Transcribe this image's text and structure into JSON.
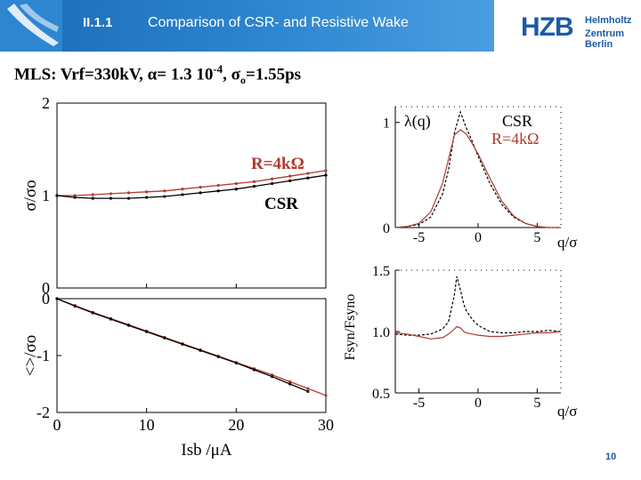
{
  "header": {
    "section": "II.1.1",
    "title": "Comparison of CSR- and Resistive  Wake",
    "logo_main": "HZB",
    "logo_sub1": "Helmholtz",
    "logo_sub2": "Zentrum Berlin",
    "brand_color": "#1c5aa5",
    "bar_color": "#2e86d0"
  },
  "subtitle": {
    "prefix": "MLS: Vrf=330kV,  α= 1.3 10",
    "exponent": "-4",
    "sep": ", σ",
    "sub": "o",
    "suffix": "=1.55ps"
  },
  "page_number": "10",
  "colors": {
    "csr": "#000000",
    "resistive": "#b03a2e"
  },
  "chart_data": [
    {
      "id": "bunch-length",
      "type": "line",
      "ylabel": "σ/σo",
      "ylim": [
        0,
        2
      ],
      "yticks": [
        "0",
        "1",
        "2"
      ],
      "xlim": [
        0,
        30
      ],
      "series": [
        {
          "name": "R=4kΩ",
          "x": [
            0,
            2,
            4,
            6,
            8,
            10,
            12,
            14,
            16,
            18,
            20,
            22,
            24,
            26,
            28,
            30
          ],
          "y": [
            1.0,
            1.0,
            1.01,
            1.02,
            1.03,
            1.04,
            1.05,
            1.07,
            1.09,
            1.11,
            1.13,
            1.15,
            1.18,
            1.21,
            1.24,
            1.27
          ]
        },
        {
          "name": "CSR",
          "x": [
            0,
            2,
            4,
            6,
            8,
            10,
            12,
            14,
            16,
            18,
            20,
            22,
            24,
            26,
            28,
            30
          ],
          "y": [
            1.0,
            0.98,
            0.97,
            0.97,
            0.97,
            0.98,
            0.99,
            1.01,
            1.03,
            1.05,
            1.07,
            1.1,
            1.13,
            1.16,
            1.19,
            1.22
          ]
        }
      ],
      "annotations": [
        "R=4kΩ",
        "CSR"
      ]
    },
    {
      "id": "centroid-shift",
      "type": "line",
      "ylabel": "<>/σo",
      "xlabel": "Isb /μA",
      "ylim": [
        -2,
        0
      ],
      "yticks": [
        "0",
        "-1",
        "-2"
      ],
      "xlim": [
        0,
        30
      ],
      "xticks": [
        "0",
        "10",
        "20",
        "30"
      ],
      "series": [
        {
          "name": "R=4kΩ",
          "x": [
            0,
            2,
            4,
            6,
            8,
            10,
            12,
            14,
            16,
            18,
            20,
            22,
            24,
            26,
            28,
            30
          ],
          "y": [
            0,
            -0.12,
            -0.24,
            -0.35,
            -0.46,
            -0.57,
            -0.68,
            -0.79,
            -0.9,
            -1.01,
            -1.12,
            -1.23,
            -1.34,
            -1.46,
            -1.58,
            -1.7
          ]
        },
        {
          "name": "CSR",
          "x": [
            0,
            2,
            4,
            6,
            8,
            10,
            12,
            14,
            16,
            18,
            20,
            22,
            24,
            26,
            28
          ],
          "y": [
            0,
            -0.13,
            -0.25,
            -0.36,
            -0.47,
            -0.58,
            -0.69,
            -0.8,
            -0.91,
            -1.02,
            -1.13,
            -1.25,
            -1.37,
            -1.5,
            -1.63
          ]
        }
      ]
    },
    {
      "id": "charge-distribution",
      "type": "line",
      "ylabel": "λ(q)",
      "xlabel": "q/σ",
      "ylim": [
        0,
        1.15
      ],
      "yticks": [
        "0",
        "1"
      ],
      "xlim": [
        -7,
        7
      ],
      "xticks": [
        "-5",
        "0",
        "5"
      ],
      "legend": [
        "CSR",
        "R=4kΩ"
      ],
      "series": [
        {
          "name": "CSR",
          "x": [
            -7,
            -6,
            -5,
            -4,
            -3,
            -2.5,
            -2,
            -1.5,
            -1,
            -0.5,
            0,
            1,
            2,
            3,
            4,
            5,
            6,
            7
          ],
          "y": [
            0,
            0.01,
            0.03,
            0.1,
            0.32,
            0.55,
            0.9,
            1.1,
            0.95,
            0.82,
            0.68,
            0.42,
            0.22,
            0.1,
            0.04,
            0.01,
            0,
            0
          ]
        },
        {
          "name": "R=4kΩ",
          "x": [
            -7,
            -6,
            -5,
            -4,
            -3,
            -2.5,
            -2,
            -1.5,
            -1,
            -0.5,
            0,
            1,
            2,
            3,
            4,
            5,
            6,
            7
          ],
          "y": [
            0,
            0.01,
            0.04,
            0.15,
            0.42,
            0.65,
            0.88,
            0.93,
            0.89,
            0.8,
            0.7,
            0.47,
            0.25,
            0.11,
            0.04,
            0.01,
            0,
            0
          ]
        }
      ]
    },
    {
      "id": "energy-spread",
      "type": "line",
      "ylabel": "Fsyn/Fsyno",
      "xlabel": "q/σ",
      "ylim": [
        0.5,
        1.5
      ],
      "yticks": [
        "0.5",
        "1.0",
        "1.5"
      ],
      "xlim": [
        -7,
        7
      ],
      "xticks": [
        "-5",
        "0",
        "5"
      ],
      "series": [
        {
          "name": "CSR",
          "x": [
            -7,
            -6,
            -5,
            -4,
            -3,
            -2.5,
            -2,
            -1.8,
            -1.5,
            -1.2,
            -1,
            -0.5,
            0,
            1,
            2,
            3,
            4,
            5,
            6,
            7
          ],
          "y": [
            0.98,
            0.97,
            0.97,
            0.98,
            1.02,
            1.08,
            1.3,
            1.45,
            1.34,
            1.22,
            1.17,
            1.1,
            1.05,
            1.0,
            0.99,
            0.99,
            1.0,
            1.0,
            1.01,
            1.0
          ]
        },
        {
          "name": "R=4kΩ",
          "x": [
            -7,
            -6,
            -5,
            -4,
            -3,
            -2.5,
            -2,
            -1.8,
            -1.5,
            -1.2,
            -1,
            -0.5,
            0,
            1,
            2,
            3,
            4,
            5,
            6,
            7
          ],
          "y": [
            0.99,
            0.98,
            0.96,
            0.94,
            0.95,
            0.98,
            1.02,
            1.04,
            1.03,
            1.0,
            0.99,
            0.98,
            0.97,
            0.96,
            0.96,
            0.97,
            0.98,
            0.99,
            0.99,
            1.0
          ]
        }
      ]
    }
  ]
}
